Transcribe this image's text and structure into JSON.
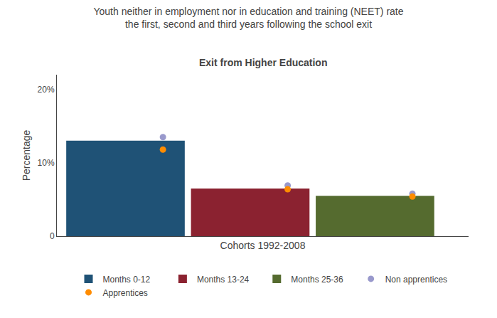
{
  "chart_data": {
    "type": "bar",
    "title": "Youth neither in employment nor in education and training (NEET) rate\nthe first, second and third years following the school exit",
    "subtitle": "Exit from Higher Education",
    "xlabel": "Cohorts 1992-2008",
    "ylabel": "Percentage",
    "categories": [
      "Months 0-12",
      "Months 13-24",
      "Months 25-36"
    ],
    "series": [
      {
        "type": "bar",
        "colors": [
          "#1f5276",
          "#8b2230",
          "#556b2f"
        ],
        "values": [
          13.0,
          6.5,
          5.5
        ]
      },
      {
        "name": "Non apprentices",
        "type": "scatter",
        "marker": "circle",
        "color": "#9999cc",
        "values": [
          13.5,
          6.9,
          5.8
        ]
      },
      {
        "name": "Apprentices",
        "type": "scatter",
        "marker": "circle",
        "color": "#ff8c00",
        "values": [
          11.8,
          6.4,
          5.4
        ]
      }
    ],
    "ylim": [
      0,
      22
    ],
    "yticks": [
      0,
      {
        "value": 10,
        "label": "10%"
      },
      {
        "value": 20,
        "label": "20%"
      }
    ],
    "grid": false,
    "legend": "bottom",
    "tick_labels": "y"
  }
}
